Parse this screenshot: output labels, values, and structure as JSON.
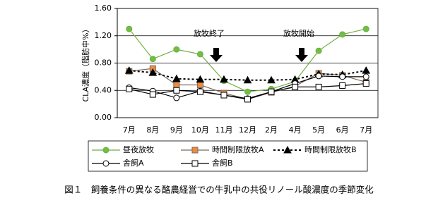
{
  "chart_data": {
    "type": "line",
    "y_label": "CLA濃度（脂肪中%）",
    "caption": "図１　飼養条件の異なる酪農経営での牛乳中の共役リノール酸濃度の季節変化",
    "annotations": [
      "放牧終了",
      "放牧開始"
    ],
    "categories": [
      "7月",
      "8月",
      "9月",
      "10月",
      "11月",
      "12月",
      "2月",
      "4月",
      "5月",
      "6月",
      "7月"
    ],
    "ylim": [
      0,
      1.6
    ],
    "yticks": [
      {
        "value": 0,
        "label": "0.00"
      },
      {
        "value": 0.4,
        "label": "0.40"
      },
      {
        "value": 0.8,
        "label": "0.80"
      },
      {
        "value": 1.2,
        "label": "1.20"
      },
      {
        "value": 1.6,
        "label": "1.60"
      }
    ],
    "grid": true,
    "series": [
      {
        "name": "昼夜放牧",
        "color": "#6fae3f",
        "marker": "circle",
        "marker_fill": "#6fbf45",
        "dash": false,
        "values": [
          1.3,
          0.86,
          1.0,
          0.93,
          0.54,
          0.38,
          0.42,
          0.53,
          0.98,
          1.22,
          1.3
        ]
      },
      {
        "name": "時間制限放牧A",
        "color": "#7a6a60",
        "marker": "square",
        "marker_fill": "#f08a3c",
        "dash": false,
        "values": [
          0.68,
          0.72,
          0.48,
          0.48,
          0.36,
          0.27,
          0.37,
          0.46,
          0.65,
          0.62,
          0.52
        ]
      },
      {
        "name": "時間制限放牧B",
        "color": "#000000",
        "marker": "triangle",
        "marker_fill": "#000000",
        "dash": true,
        "values": [
          0.69,
          0.66,
          0.57,
          0.56,
          0.56,
          0.55,
          0.55,
          0.56,
          0.64,
          0.63,
          0.69
        ]
      },
      {
        "name": "舎飼A",
        "color": "#000000",
        "marker": "circle",
        "marker_fill": "#ffffff",
        "dash": false,
        "values": [
          0.44,
          0.39,
          0.29,
          0.39,
          0.33,
          0.28,
          0.38,
          0.5,
          0.61,
          0.6,
          0.6
        ]
      },
      {
        "name": "舎飼B",
        "color": "#000000",
        "marker": "square",
        "marker_fill": "#ffffff",
        "dash": false,
        "values": [
          0.42,
          0.34,
          0.4,
          0.38,
          0.33,
          0.27,
          0.38,
          0.45,
          0.45,
          0.47,
          0.5
        ]
      }
    ]
  }
}
